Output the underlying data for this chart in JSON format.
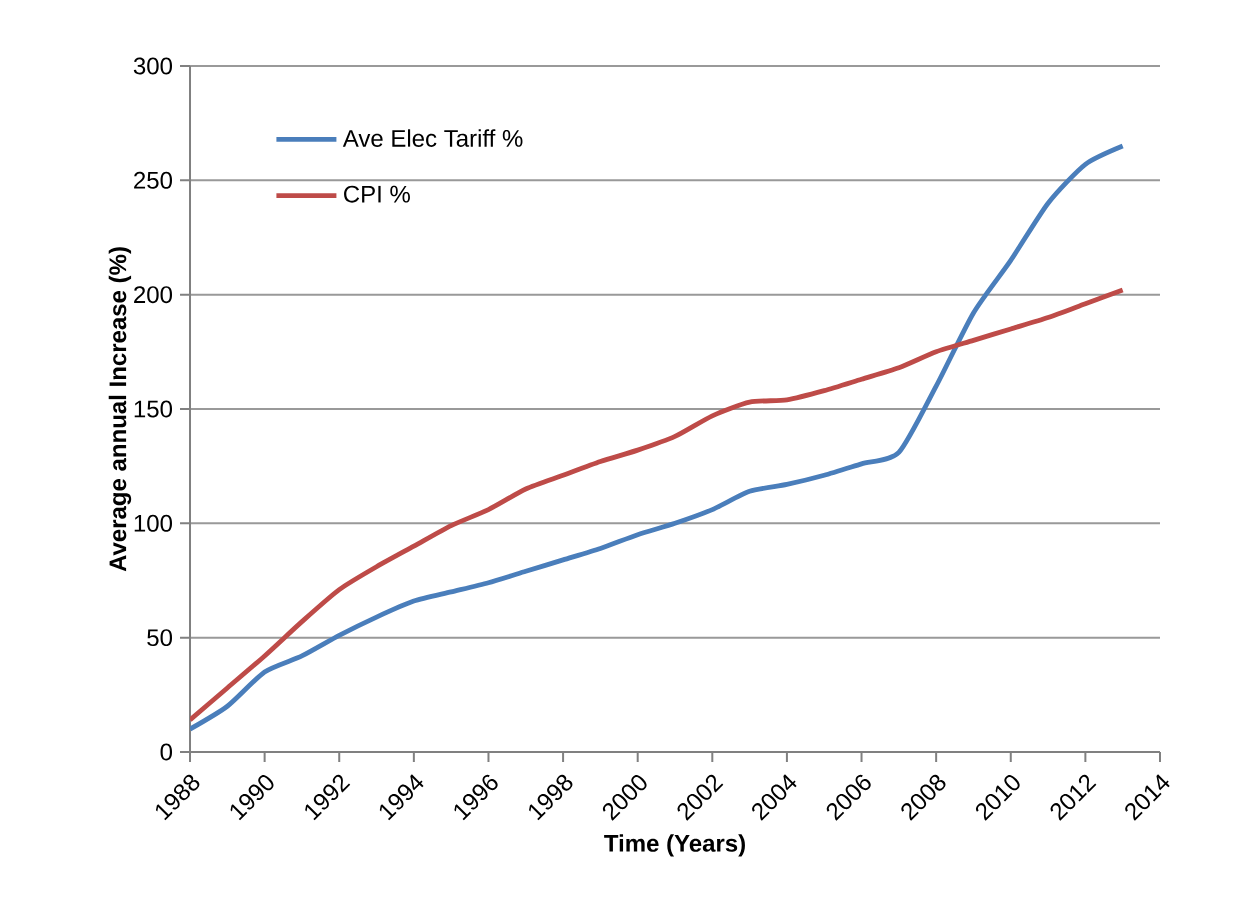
{
  "chart_data": {
    "type": "line",
    "xlabel": "Time (Years)",
    "ylabel": "Average annual Increase (%)",
    "x": [
      1988,
      1989,
      1990,
      1991,
      1992,
      1993,
      1994,
      1995,
      1996,
      1997,
      1998,
      1999,
      2000,
      2001,
      2002,
      2003,
      2004,
      2005,
      2006,
      2007,
      2008,
      2009,
      2010,
      2011,
      2012,
      2013
    ],
    "series": [
      {
        "name": "Ave Elec Tariff %",
        "color": "#4a7ebb",
        "values": [
          10,
          20,
          35,
          42,
          51,
          59,
          66,
          70,
          74,
          79,
          84,
          89,
          95,
          100,
          106,
          114,
          117,
          121,
          126,
          131,
          160,
          192,
          215,
          240,
          257,
          265
        ]
      },
      {
        "name": "CPI %",
        "color": "#be4b48",
        "values": [
          14,
          28,
          42,
          57,
          71,
          81,
          90,
          99,
          106,
          115,
          121,
          127,
          132,
          138,
          147,
          153,
          154,
          158,
          163,
          168,
          175,
          180,
          185,
          190,
          196,
          202
        ]
      }
    ],
    "xlim": [
      1988,
      2014
    ],
    "xticks": [
      1988,
      1990,
      1992,
      1994,
      1996,
      1998,
      2000,
      2002,
      2004,
      2006,
      2008,
      2010,
      2012,
      2014
    ],
    "ylim": [
      0,
      300
    ],
    "yticks": [
      0,
      50,
      100,
      150,
      200,
      250,
      300
    ],
    "grid": "y",
    "legend": "top left",
    "marker": "none",
    "line_style": "solid"
  }
}
